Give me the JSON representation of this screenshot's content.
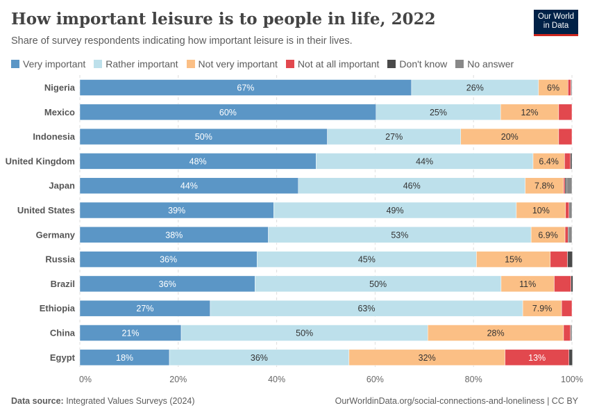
{
  "header": {
    "title": "How important leisure is to people in life, 2022",
    "subtitle": "Share of survey respondents indicating how important leisure is in their lives.",
    "logo": "Our World in Data"
  },
  "footer": {
    "source_label": "Data source:",
    "source": "Integrated Values Surveys (2024)",
    "url": "OurWorldinData.org/social-connections-and-loneliness | CC BY"
  },
  "chart_data": {
    "type": "bar",
    "orientation": "horizontal",
    "stacked": true,
    "xlim": [
      0,
      100
    ],
    "x_ticks": [
      "0%",
      "20%",
      "40%",
      "60%",
      "80%",
      "100%"
    ],
    "grid": true,
    "legend_position": "top",
    "categories": [
      "Nigeria",
      "Mexico",
      "Indonesia",
      "United Kingdom",
      "Japan",
      "United States",
      "Germany",
      "Russia",
      "Brazil",
      "Ethiopia",
      "China",
      "Egypt"
    ],
    "series": [
      {
        "name": "Very important",
        "color": "#5b96c6",
        "values": [
          67.4,
          60.2,
          50.3,
          48.0,
          44.4,
          39.4,
          38.3,
          36.0,
          35.6,
          26.5,
          20.6,
          18.2
        ],
        "labels": [
          "67%",
          "60%",
          "50%",
          "48%",
          "44%",
          "39%",
          "38%",
          "36%",
          "36%",
          "27%",
          "21%",
          "18%"
        ]
      },
      {
        "name": "Rather important",
        "color": "#bde0eb",
        "values": [
          25.8,
          25.3,
          27.1,
          44.1,
          46.1,
          49.3,
          53.4,
          44.6,
          50.0,
          63.5,
          50.1,
          36.5
        ],
        "labels": [
          "26%",
          "25%",
          "27%",
          "44%",
          "46%",
          "49%",
          "53%",
          "45%",
          "50%",
          "63%",
          "50%",
          "36%"
        ]
      },
      {
        "name": "Not very important",
        "color": "#fbbf85",
        "values": [
          6.0,
          11.8,
          19.9,
          6.4,
          7.8,
          10.0,
          6.9,
          15.0,
          10.8,
          7.9,
          27.6,
          31.7
        ],
        "labels": [
          "6%",
          "12%",
          "20%",
          "6.4%",
          "7.8%",
          "10%",
          "6.9%",
          "15%",
          "11%",
          "7.9%",
          "28%",
          "32%"
        ]
      },
      {
        "name": "Not at all important",
        "color": "#e2484e",
        "values": [
          0.6,
          2.7,
          2.7,
          1.2,
          0.3,
          0.7,
          0.6,
          3.5,
          3.4,
          2.1,
          1.4,
          13.0
        ],
        "labels": [
          "",
          "",
          "",
          "",
          "",
          "",
          "",
          "",
          "",
          "",
          "",
          "13%"
        ]
      },
      {
        "name": "Don't know",
        "color": "#4a4a4a",
        "values": [
          0,
          0,
          0,
          0.3,
          0.3,
          0,
          0.2,
          1.0,
          0.4,
          0,
          0,
          0.7
        ],
        "labels": [
          "",
          "",
          "",
          "",
          "",
          "",
          "",
          "",
          "",
          "",
          "",
          ""
        ]
      },
      {
        "name": "No answer",
        "color": "#888888",
        "values": [
          0.2,
          0,
          0,
          0,
          1.1,
          0.6,
          0.6,
          0,
          0,
          0,
          0.3,
          0
        ],
        "labels": [
          "",
          "",
          "",
          "",
          "",
          "",
          "",
          "",
          "",
          "",
          "",
          ""
        ]
      }
    ]
  }
}
